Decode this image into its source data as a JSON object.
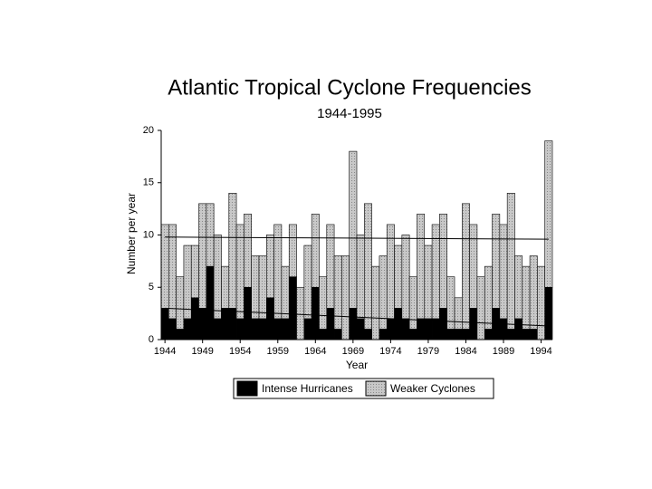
{
  "chart_data": {
    "type": "stacked-bar",
    "title": "Atlantic Tropical Cyclone Frequencies",
    "subtitle": "1944-1995",
    "x_label": "Year",
    "y_label": "Number per year",
    "x": [
      1944,
      1945,
      1946,
      1947,
      1948,
      1949,
      1950,
      1951,
      1952,
      1953,
      1954,
      1955,
      1956,
      1957,
      1958,
      1959,
      1960,
      1961,
      1962,
      1963,
      1964,
      1965,
      1966,
      1967,
      1968,
      1969,
      1970,
      1971,
      1972,
      1973,
      1974,
      1975,
      1976,
      1977,
      1978,
      1979,
      1980,
      1981,
      1982,
      1983,
      1984,
      1985,
      1986,
      1987,
      1988,
      1989,
      1990,
      1991,
      1992,
      1993,
      1994,
      1995
    ],
    "series": [
      {
        "name": "Intense Hurricanes",
        "color": "#000000",
        "values": [
          3,
          2,
          1,
          2,
          4,
          3,
          7,
          2,
          3,
          3,
          2,
          5,
          2,
          2,
          4,
          2,
          2,
          6,
          0,
          2,
          5,
          1,
          3,
          1,
          0,
          3,
          2,
          1,
          0,
          1,
          2,
          3,
          2,
          1,
          2,
          2,
          2,
          3,
          1,
          1,
          1,
          3,
          0,
          1,
          3,
          2,
          1,
          2,
          1,
          1,
          0,
          5
        ]
      },
      {
        "name": "Weaker Cyclones",
        "color": "#c8c8c8",
        "values": [
          8,
          9,
          5,
          7,
          5,
          10,
          6,
          8,
          4,
          11,
          9,
          7,
          6,
          6,
          6,
          9,
          5,
          5,
          5,
          7,
          7,
          5,
          8,
          7,
          8,
          15,
          8,
          12,
          7,
          7,
          9,
          6,
          8,
          5,
          10,
          7,
          9,
          9,
          5,
          3,
          12,
          8,
          6,
          6,
          9,
          9,
          13,
          6,
          6,
          7,
          7,
          14
        ]
      }
    ],
    "trends": [
      {
        "x": [
          1944,
          1995
        ],
        "values": [
          9.8,
          9.6
        ]
      },
      {
        "x": [
          1944,
          1995
        ],
        "values": [
          3.0,
          1.3
        ]
      }
    ],
    "xlim": [
      1943.5,
      1995.5
    ],
    "xticks": [
      1944,
      1949,
      1954,
      1959,
      1964,
      1969,
      1974,
      1979,
      1984,
      1989,
      1994
    ],
    "ylim": [
      0,
      20
    ],
    "yticks": [
      0,
      5,
      10,
      15,
      20
    ]
  }
}
